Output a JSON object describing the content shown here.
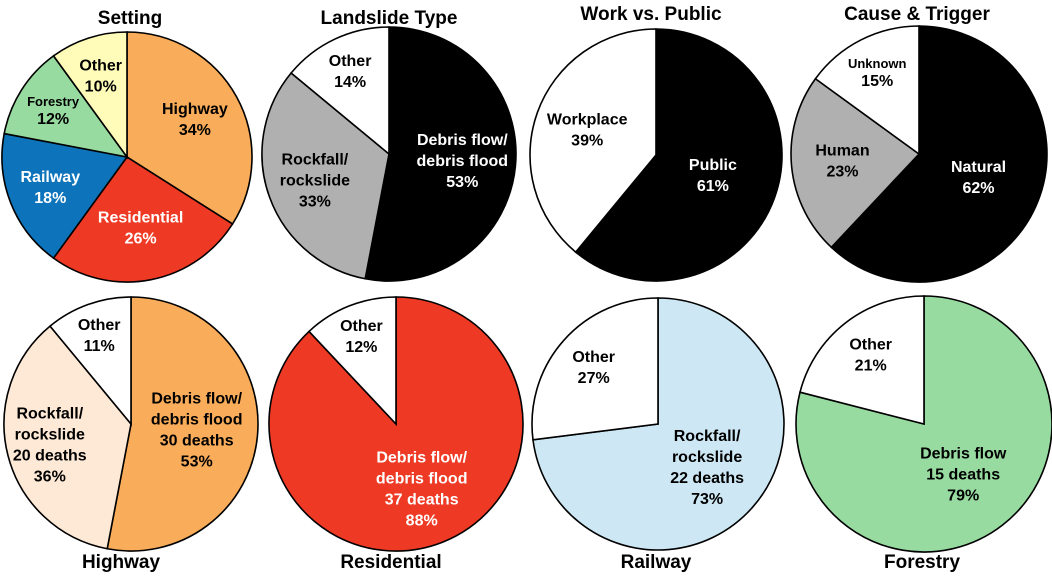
{
  "chart_data": [
    {
      "type": "pie",
      "title": "Setting",
      "slices": [
        {
          "label": "Highway",
          "value": 34,
          "pct_label": "34%",
          "color": "#F9AC59",
          "text_color": "#000000"
        },
        {
          "label": "Residential",
          "value": 26,
          "pct_label": "26%",
          "color": "#EE3A24",
          "text_color": "#FFFFFF"
        },
        {
          "label": "Railway",
          "value": 18,
          "pct_label": "18%",
          "color": "#0D74BB",
          "text_color": "#FFFFFF"
        },
        {
          "label": "Forestry",
          "value": 12,
          "pct_label": "12%",
          "color": "#98DBA0",
          "text_color": "#000000"
        },
        {
          "label": "Other",
          "value": 10,
          "pct_label": "10%",
          "color": "#FFFBB8",
          "text_color": "#000000"
        }
      ]
    },
    {
      "type": "pie",
      "title": "Landslide Type",
      "slices": [
        {
          "label": "Debris flow/\ndebris flood",
          "value": 53,
          "pct_label": "53%",
          "color": "#000000",
          "text_color": "#FFFFFF"
        },
        {
          "label": "Rockfall/\nrockslide",
          "value": 33,
          "pct_label": "33%",
          "color": "#B0B0B0",
          "text_color": "#000000"
        },
        {
          "label": "Other",
          "value": 14,
          "pct_label": "14%",
          "color": "#FFFFFF",
          "text_color": "#000000"
        }
      ]
    },
    {
      "type": "pie",
      "title": "Work vs. Public",
      "slices": [
        {
          "label": "Public",
          "value": 61,
          "pct_label": "61%",
          "color": "#000000",
          "text_color": "#FFFFFF"
        },
        {
          "label": "Workplace",
          "value": 39,
          "pct_label": "39%",
          "color": "#FFFFFF",
          "text_color": "#000000"
        }
      ]
    },
    {
      "type": "pie",
      "title": "Cause & Trigger",
      "slices": [
        {
          "label": "Natural",
          "value": 62,
          "pct_label": "62%",
          "color": "#000000",
          "text_color": "#FFFFFF"
        },
        {
          "label": "Human",
          "value": 23,
          "pct_label": "23%",
          "color": "#B0B0B0",
          "text_color": "#000000"
        },
        {
          "label": "Unknown",
          "value": 15,
          "pct_label": "15%",
          "color": "#FFFFFF",
          "text_color": "#000000"
        }
      ]
    },
    {
      "type": "pie",
      "title": "Highway",
      "slices": [
        {
          "label": "Debris flow/\ndebris flood\n30 deaths",
          "value": 53,
          "pct_label": "53%",
          "color": "#F9AC59",
          "text_color": "#000000"
        },
        {
          "label": "Rockfall/\nrockslide\n20 deaths",
          "value": 36,
          "pct_label": "36%",
          "color": "#FDE9D6",
          "text_color": "#000000"
        },
        {
          "label": "Other",
          "value": 11,
          "pct_label": "11%",
          "color": "#FFFFFF",
          "text_color": "#000000"
        }
      ]
    },
    {
      "type": "pie",
      "title": "Residential",
      "slices": [
        {
          "label": "Debris flow/\ndebris flood\n37 deaths",
          "value": 88,
          "pct_label": "88%",
          "color": "#EE3A24",
          "text_color": "#FFFFFF"
        },
        {
          "label": "Other",
          "value": 12,
          "pct_label": "12%",
          "color": "#FFFFFF",
          "text_color": "#000000"
        }
      ]
    },
    {
      "type": "pie",
      "title": "Railway",
      "slices": [
        {
          "label": "Rockfall/\nrockslide\n22 deaths",
          "value": 73,
          "pct_label": "73%",
          "color": "#CDE8F4",
          "text_color": "#000000"
        },
        {
          "label": "Other",
          "value": 27,
          "pct_label": "27%",
          "color": "#FFFFFF",
          "text_color": "#000000"
        }
      ]
    },
    {
      "type": "pie",
      "title": "Forestry",
      "slices": [
        {
          "label": "Debris flow\n15 deaths",
          "value": 79,
          "pct_label": "79%",
          "color": "#98DBA0",
          "text_color": "#000000"
        },
        {
          "label": "Other",
          "value": 21,
          "pct_label": "21%",
          "color": "#FFFFFF",
          "text_color": "#000000"
        }
      ]
    }
  ]
}
